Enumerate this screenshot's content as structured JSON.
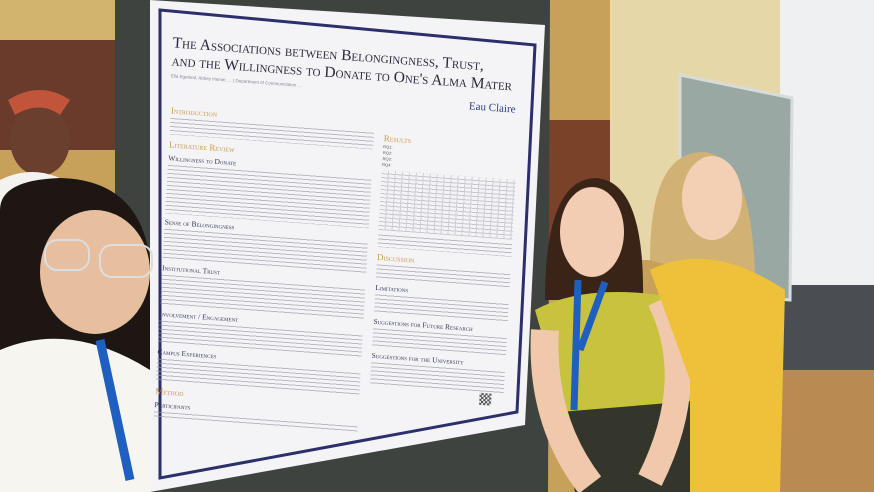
{
  "poster": {
    "title_line1": "The Associations between Belongingness, Trust,",
    "title_line2": "and the Willingness to Donate to One's Alma Mater",
    "authors": "Ella Egeland, Abbey Hamer, ... | Department of Communication ...",
    "logo_text": "Eau Claire",
    "left_column": [
      {
        "heading": "Introduction",
        "level": 1
      },
      {
        "heading": "Literature Review",
        "level": 1
      },
      {
        "heading": "Willingness to Donate",
        "level": 2
      },
      {
        "heading": "Sense of Belongingness",
        "level": 2
      },
      {
        "heading": "Institutional Trust",
        "level": 2
      },
      {
        "heading": "Involvement / Engagement",
        "level": 2
      },
      {
        "heading": "Campus Experiences",
        "level": 2
      },
      {
        "heading": "Method",
        "level": 1
      },
      {
        "heading": "Participants",
        "level": 2
      }
    ],
    "right_column": [
      {
        "heading": "Results",
        "level": 1
      },
      {
        "heading": "Discussion",
        "level": 1
      },
      {
        "heading": "Limitations",
        "level": 2
      },
      {
        "heading": "Suggestions for Future Research",
        "level": 2
      },
      {
        "heading": "Suggestions for the University",
        "level": 2
      }
    ],
    "research_questions": [
      "RQ1:",
      "RQ2:",
      "RQ3:",
      "RQ4:"
    ]
  },
  "colors": {
    "wall": "#c9a35a",
    "poster_border": "#2b2f6a",
    "heading_gold": "#c99a4a",
    "lanyard": "#1f5fbf"
  }
}
